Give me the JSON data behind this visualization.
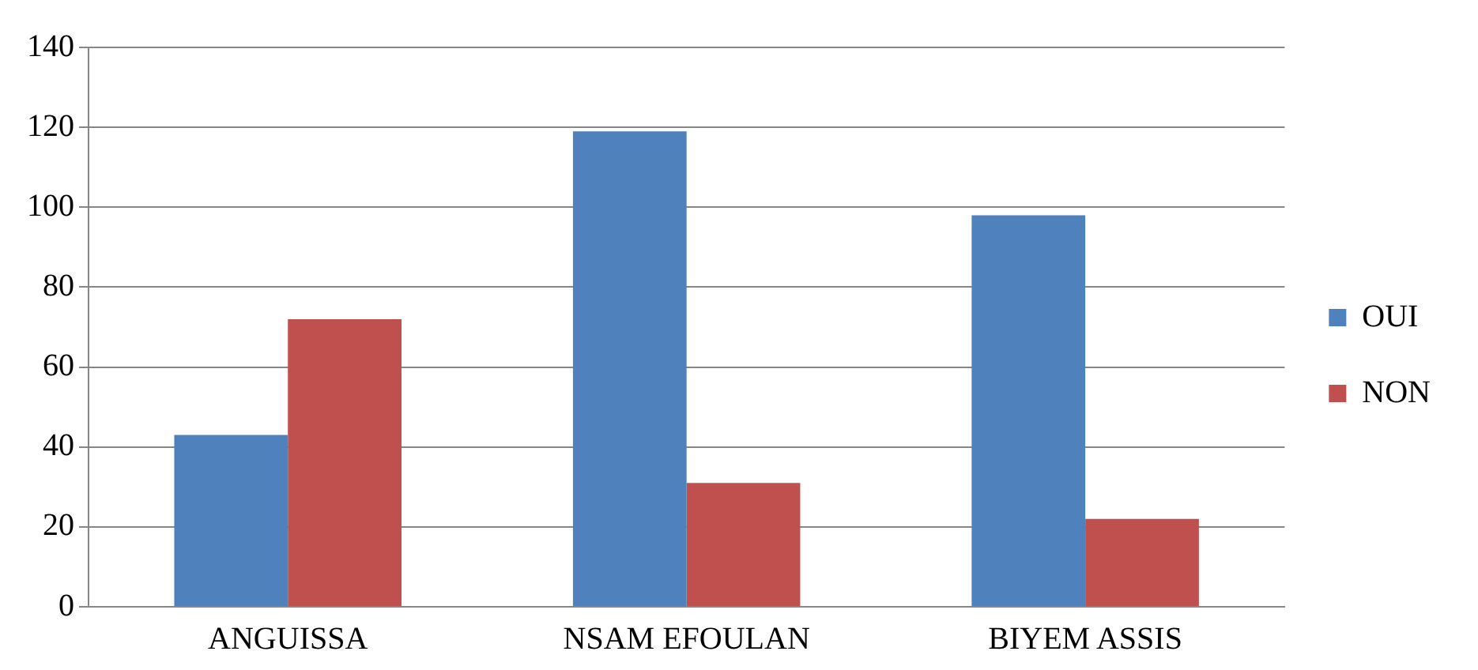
{
  "chart_data": {
    "type": "bar",
    "categories": [
      "ANGUISSA",
      "NSAM EFOULAN",
      "BIYEM ASSIS"
    ],
    "series": [
      {
        "name": "OUI",
        "color": "#4f81bd",
        "values": [
          43,
          119,
          98
        ]
      },
      {
        "name": "NON",
        "color": "#c0504d",
        "values": [
          72,
          31,
          22
        ]
      }
    ],
    "ylim": [
      0,
      140
    ],
    "yticks": [
      0,
      20,
      40,
      60,
      80,
      100,
      120,
      140
    ],
    "grid": "y",
    "legend": "right"
  }
}
